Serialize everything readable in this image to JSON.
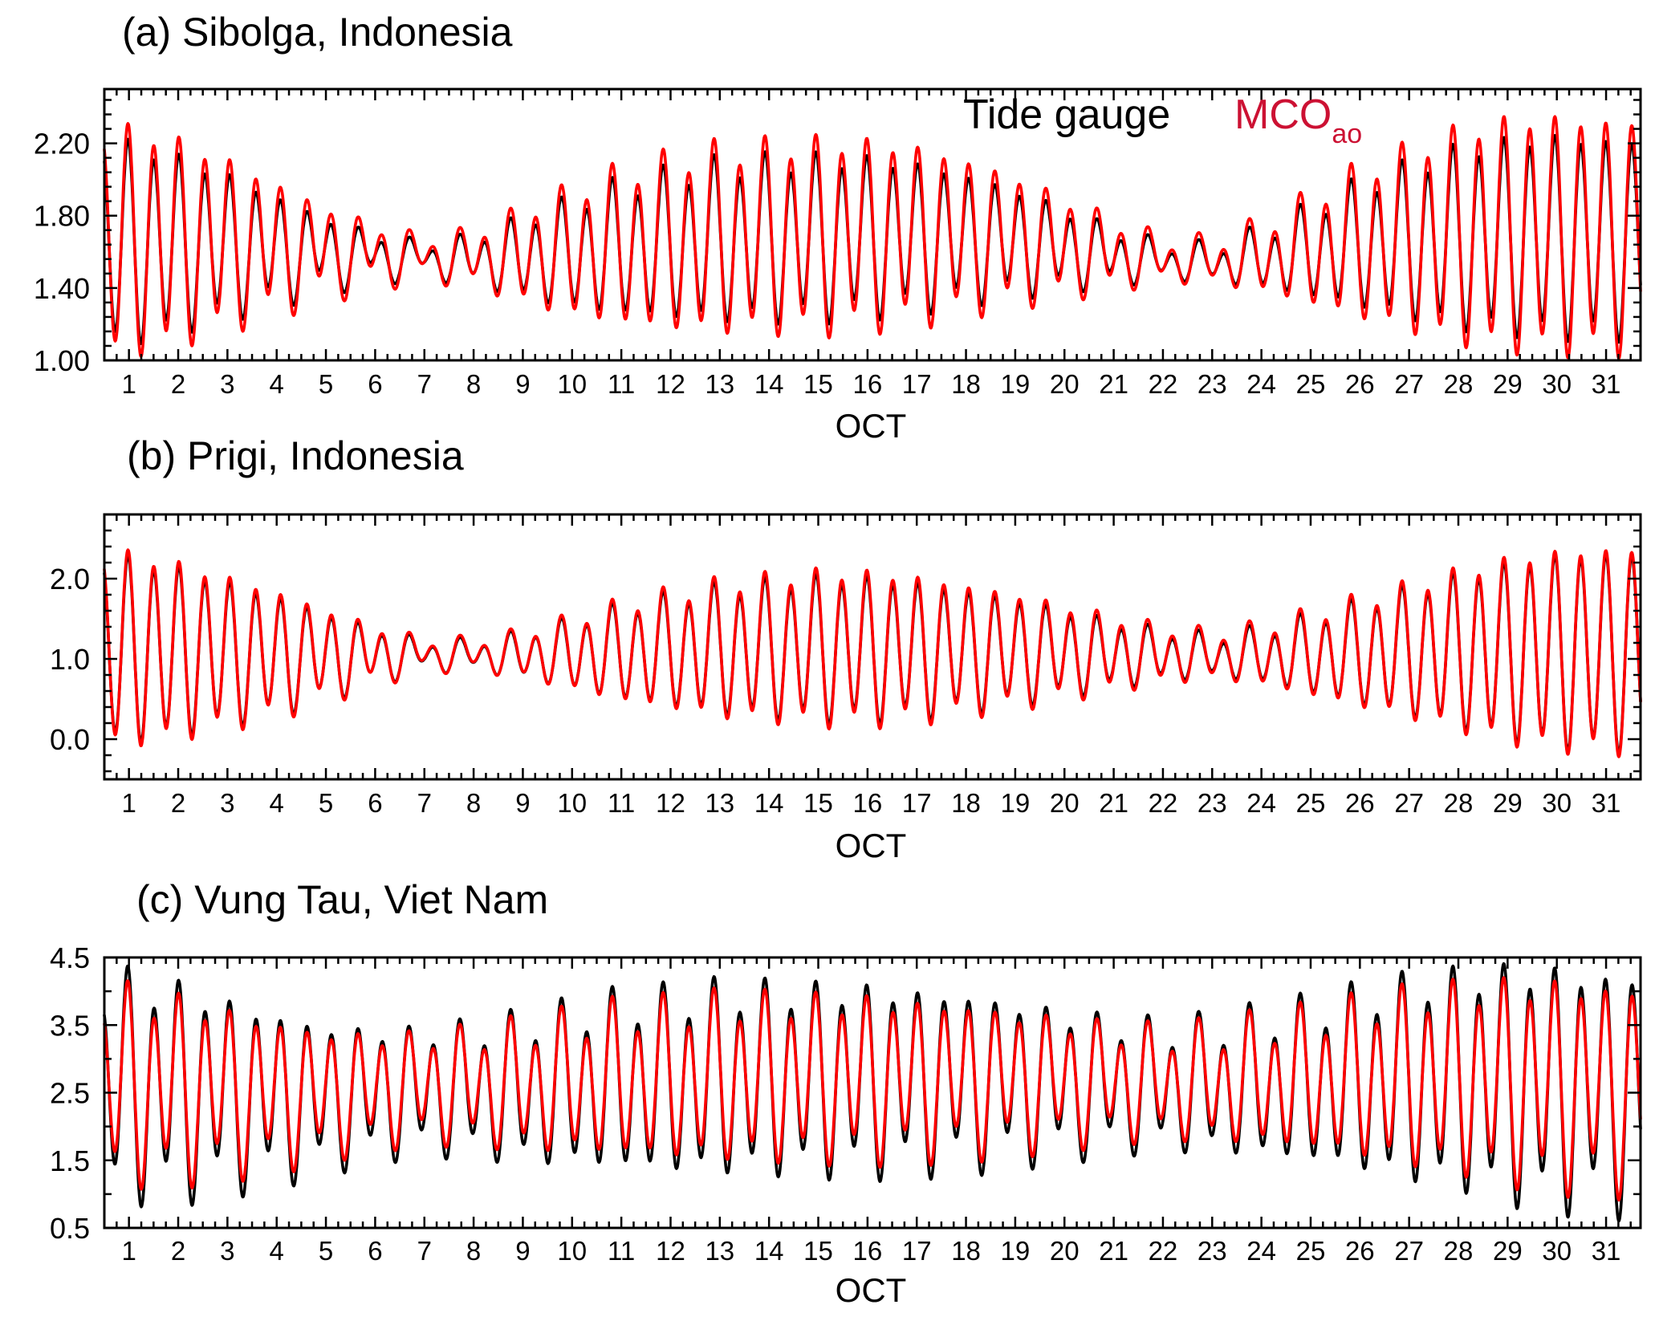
{
  "chart_data": [
    {
      "type": "line",
      "title": "(a) Sibolga, Indonesia",
      "xlabel": "OCT",
      "ylabel": "",
      "x_tick_labels": [
        "1",
        "2",
        "3",
        "4",
        "5",
        "6",
        "7",
        "8",
        "9",
        "10",
        "11",
        "12",
        "13",
        "14",
        "15",
        "16",
        "17",
        "18",
        "19",
        "20",
        "21",
        "22",
        "23",
        "24",
        "25",
        "26",
        "27",
        "28",
        "29",
        "30",
        "31"
      ],
      "xlim": [
        0.5,
        31.7
      ],
      "ylim": [
        1.0,
        2.5
      ],
      "y_tick_labels": [
        "1.00",
        "1.40",
        "1.80",
        "2.20"
      ],
      "y_tick_values": [
        1.0,
        1.4,
        1.8,
        2.2
      ],
      "legend": {
        "placement": "top-right",
        "items": [
          {
            "name": "Tide gauge",
            "color": "#000000"
          },
          {
            "name": "MCO",
            "subscript": "ao",
            "color": "#cc1133"
          }
        ]
      },
      "series": [
        {
          "name": "Tide gauge",
          "color": "#000000",
          "mean": [
            1.65,
            1.65,
            1.64,
            1.62,
            1.6,
            1.58,
            1.56,
            1.56,
            1.57,
            1.59,
            1.62,
            1.64,
            1.66,
            1.67,
            1.68,
            1.69,
            1.69,
            1.68,
            1.66,
            1.62,
            1.58,
            1.55,
            1.54,
            1.56,
            1.6,
            1.64,
            1.66,
            1.68,
            1.69,
            1.69,
            1.68
          ],
          "semi_amp": [
            0.53,
            0.46,
            0.37,
            0.27,
            0.17,
            0.1,
            0.07,
            0.11,
            0.2,
            0.28,
            0.34,
            0.38,
            0.41,
            0.42,
            0.42,
            0.41,
            0.38,
            0.33,
            0.27,
            0.2,
            0.13,
            0.08,
            0.08,
            0.14,
            0.23,
            0.32,
            0.4,
            0.47,
            0.51,
            0.53,
            0.52
          ],
          "diurnal_amp": [
            0.06,
            0.06,
            0.07,
            0.07,
            0.08,
            0.07,
            0.06,
            0.05,
            0.05,
            0.06,
            0.07,
            0.07,
            0.08,
            0.08,
            0.08,
            0.07,
            0.07,
            0.06,
            0.06,
            0.06,
            0.06,
            0.05,
            0.05,
            0.06,
            0.06,
            0.07,
            0.07,
            0.07,
            0.06,
            0.06,
            0.06
          ]
        },
        {
          "name": "MCO",
          "color": "#ff0000",
          "mean": [
            1.66,
            1.66,
            1.65,
            1.63,
            1.61,
            1.59,
            1.57,
            1.57,
            1.58,
            1.6,
            1.63,
            1.65,
            1.67,
            1.68,
            1.69,
            1.7,
            1.7,
            1.69,
            1.67,
            1.63,
            1.59,
            1.56,
            1.55,
            1.57,
            1.61,
            1.65,
            1.67,
            1.69,
            1.7,
            1.7,
            1.69
          ],
          "semi_amp": [
            0.6,
            0.54,
            0.44,
            0.33,
            0.22,
            0.14,
            0.09,
            0.13,
            0.24,
            0.33,
            0.4,
            0.45,
            0.48,
            0.49,
            0.5,
            0.49,
            0.46,
            0.4,
            0.33,
            0.25,
            0.17,
            0.1,
            0.1,
            0.17,
            0.28,
            0.39,
            0.48,
            0.56,
            0.61,
            0.62,
            0.61
          ],
          "diurnal_amp": [
            0.07,
            0.07,
            0.08,
            0.08,
            0.09,
            0.08,
            0.07,
            0.06,
            0.06,
            0.07,
            0.08,
            0.08,
            0.09,
            0.09,
            0.09,
            0.08,
            0.08,
            0.07,
            0.07,
            0.07,
            0.07,
            0.06,
            0.06,
            0.07,
            0.07,
            0.08,
            0.08,
            0.08,
            0.07,
            0.07,
            0.07
          ]
        }
      ]
    },
    {
      "type": "line",
      "title": "(b) Prigi, Indonesia",
      "xlabel": "OCT",
      "ylabel": "",
      "x_tick_labels": [
        "1",
        "2",
        "3",
        "4",
        "5",
        "6",
        "7",
        "8",
        "9",
        "10",
        "11",
        "12",
        "13",
        "14",
        "15",
        "16",
        "17",
        "18",
        "19",
        "20",
        "21",
        "22",
        "23",
        "24",
        "25",
        "26",
        "27",
        "28",
        "29",
        "30",
        "31"
      ],
      "xlim": [
        0.5,
        31.7
      ],
      "ylim": [
        -0.5,
        2.8
      ],
      "y_tick_labels": [
        "0.0",
        "1.0",
        "2.0"
      ],
      "y_tick_values": [
        0.0,
        1.0,
        2.0
      ],
      "series": [
        {
          "name": "Tide gauge",
          "color": "#000000",
          "mean": [
            1.12,
            1.1,
            1.08,
            1.06,
            1.05,
            1.05,
            1.05,
            1.05,
            1.05,
            1.06,
            1.08,
            1.1,
            1.11,
            1.12,
            1.13,
            1.13,
            1.12,
            1.11,
            1.1,
            1.08,
            1.06,
            1.05,
            1.04,
            1.04,
            1.05,
            1.07,
            1.09,
            1.1,
            1.1,
            1.1,
            1.1
          ],
          "semi_amp": [
            1.1,
            1.0,
            0.85,
            0.7,
            0.5,
            0.3,
            0.15,
            0.15,
            0.25,
            0.4,
            0.55,
            0.65,
            0.75,
            0.8,
            0.85,
            0.85,
            0.8,
            0.72,
            0.62,
            0.5,
            0.38,
            0.28,
            0.22,
            0.3,
            0.45,
            0.6,
            0.75,
            0.9,
            1.05,
            1.15,
            1.18
          ],
          "diurnal_amp": [
            0.1,
            0.1,
            0.11,
            0.11,
            0.12,
            0.11,
            0.1,
            0.09,
            0.08,
            0.09,
            0.1,
            0.11,
            0.12,
            0.12,
            0.12,
            0.11,
            0.11,
            0.1,
            0.1,
            0.1,
            0.09,
            0.09,
            0.09,
            0.1,
            0.1,
            0.11,
            0.11,
            0.11,
            0.1,
            0.1,
            0.1
          ]
        },
        {
          "name": "MCO",
          "color": "#ff0000",
          "mean": [
            1.13,
            1.11,
            1.09,
            1.07,
            1.06,
            1.06,
            1.06,
            1.06,
            1.06,
            1.07,
            1.09,
            1.11,
            1.12,
            1.13,
            1.14,
            1.14,
            1.13,
            1.12,
            1.11,
            1.09,
            1.07,
            1.06,
            1.05,
            1.05,
            1.06,
            1.08,
            1.1,
            1.11,
            1.11,
            1.11,
            1.11
          ],
          "semi_amp": [
            1.15,
            1.05,
            0.9,
            0.74,
            0.53,
            0.32,
            0.16,
            0.16,
            0.26,
            0.42,
            0.58,
            0.69,
            0.8,
            0.86,
            0.91,
            0.91,
            0.86,
            0.77,
            0.67,
            0.55,
            0.43,
            0.32,
            0.26,
            0.34,
            0.49,
            0.64,
            0.79,
            0.95,
            1.1,
            1.19,
            1.22
          ],
          "diurnal_amp": [
            0.11,
            0.11,
            0.12,
            0.12,
            0.13,
            0.12,
            0.11,
            0.1,
            0.09,
            0.1,
            0.11,
            0.12,
            0.13,
            0.13,
            0.13,
            0.12,
            0.12,
            0.11,
            0.11,
            0.11,
            0.1,
            0.1,
            0.1,
            0.11,
            0.11,
            0.12,
            0.12,
            0.12,
            0.11,
            0.11,
            0.11
          ]
        }
      ]
    },
    {
      "type": "line",
      "title": "(c) Vung Tau, Viet Nam",
      "xlabel": "OCT",
      "ylabel": "",
      "x_tick_labels": [
        "1",
        "2",
        "3",
        "4",
        "5",
        "6",
        "7",
        "8",
        "9",
        "10",
        "11",
        "12",
        "13",
        "14",
        "15",
        "16",
        "17",
        "18",
        "19",
        "20",
        "21",
        "22",
        "23",
        "24",
        "25",
        "26",
        "27",
        "28",
        "29",
        "30",
        "31"
      ],
      "xlim": [
        0.5,
        31.7
      ],
      "ylim": [
        0.5,
        4.5
      ],
      "y_tick_labels": [
        "0.5",
        "1.5",
        "2.5",
        "3.5",
        "4.5"
      ],
      "y_tick_values": [
        0.5,
        1.5,
        2.5,
        3.5,
        4.5
      ],
      "series": [
        {
          "name": "Tide gauge",
          "color": "#000000",
          "mean": [
            2.6,
            2.55,
            2.5,
            2.45,
            2.45,
            2.5,
            2.55,
            2.55,
            2.55,
            2.6,
            2.65,
            2.65,
            2.7,
            2.7,
            2.7,
            2.7,
            2.7,
            2.7,
            2.68,
            2.65,
            2.62,
            2.6,
            2.6,
            2.62,
            2.65,
            2.68,
            2.7,
            2.7,
            2.65,
            2.6,
            2.55
          ],
          "semi_amp": [
            1.45,
            1.4,
            1.25,
            1.1,
            0.95,
            0.85,
            0.8,
            0.85,
            0.95,
            1.05,
            1.15,
            1.2,
            1.25,
            1.25,
            1.25,
            1.25,
            1.2,
            1.15,
            1.05,
            0.95,
            0.85,
            0.8,
            0.85,
            0.95,
            1.05,
            1.2,
            1.35,
            1.45,
            1.55,
            1.6,
            1.55
          ],
          "diurnal_amp": [
            0.45,
            0.4,
            0.35,
            0.3,
            0.25,
            0.25,
            0.25,
            0.3,
            0.3,
            0.3,
            0.3,
            0.3,
            0.3,
            0.3,
            0.3,
            0.3,
            0.3,
            0.3,
            0.3,
            0.3,
            0.3,
            0.3,
            0.3,
            0.3,
            0.3,
            0.3,
            0.3,
            0.3,
            0.35,
            0.35,
            0.4
          ]
        },
        {
          "name": "MCO",
          "color": "#ff0000",
          "mean": [
            2.62,
            2.58,
            2.54,
            2.5,
            2.5,
            2.55,
            2.6,
            2.6,
            2.6,
            2.64,
            2.68,
            2.68,
            2.72,
            2.72,
            2.72,
            2.72,
            2.72,
            2.72,
            2.7,
            2.68,
            2.66,
            2.64,
            2.64,
            2.66,
            2.68,
            2.7,
            2.72,
            2.72,
            2.68,
            2.64,
            2.6
          ],
          "semi_amp": [
            1.25,
            1.2,
            1.08,
            0.95,
            0.82,
            0.73,
            0.69,
            0.73,
            0.82,
            0.9,
            0.99,
            1.03,
            1.08,
            1.08,
            1.08,
            1.08,
            1.03,
            0.99,
            0.9,
            0.82,
            0.73,
            0.69,
            0.73,
            0.82,
            0.9,
            1.03,
            1.16,
            1.25,
            1.33,
            1.38,
            1.33
          ],
          "diurnal_amp": [
            0.4,
            0.36,
            0.32,
            0.28,
            0.24,
            0.24,
            0.24,
            0.28,
            0.28,
            0.28,
            0.28,
            0.28,
            0.28,
            0.28,
            0.28,
            0.28,
            0.28,
            0.28,
            0.28,
            0.28,
            0.28,
            0.28,
            0.28,
            0.28,
            0.28,
            0.28,
            0.28,
            0.28,
            0.32,
            0.32,
            0.36
          ]
        }
      ]
    }
  ]
}
